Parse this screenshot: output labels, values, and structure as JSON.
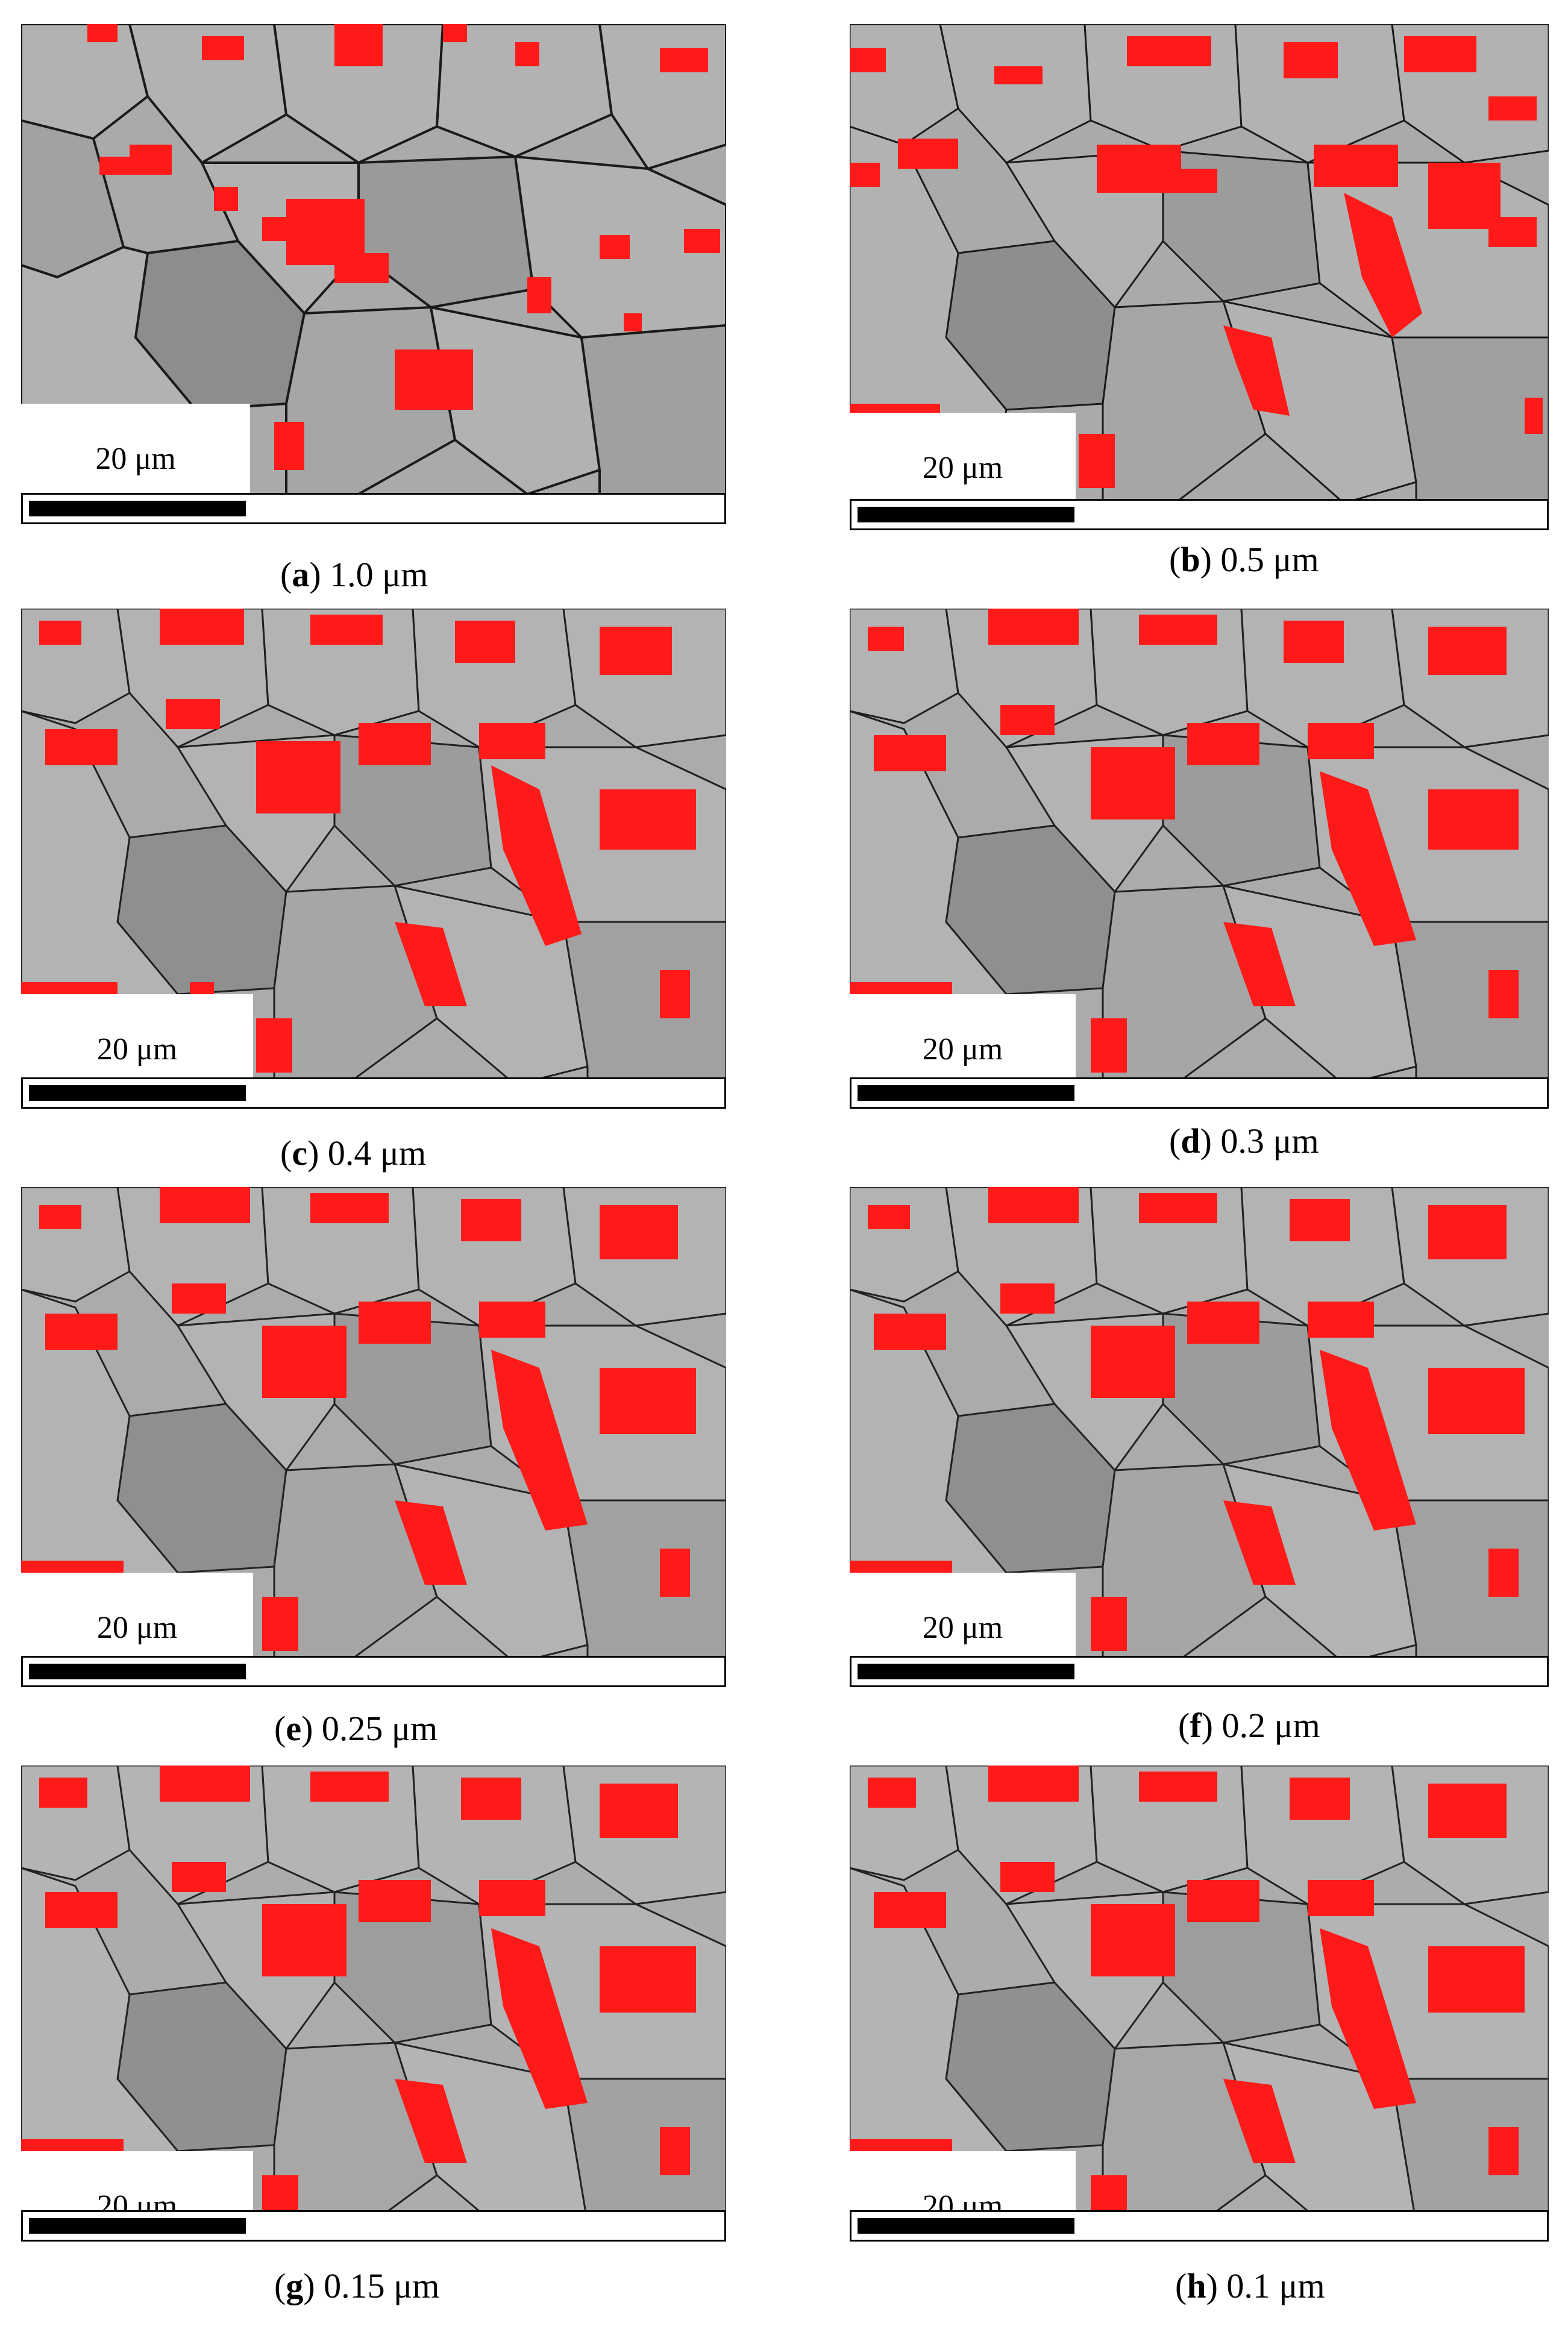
{
  "figure": {
    "scale_bar_label": "20 μm",
    "panels": [
      {
        "letter": "a",
        "step": "1.0 μm"
      },
      {
        "letter": "b",
        "step": "0.5 μm"
      },
      {
        "letter": "c",
        "step": "0.4 μm"
      },
      {
        "letter": "d",
        "step": "0.3 μm"
      },
      {
        "letter": "e",
        "step": "0.25 μm"
      },
      {
        "letter": "f",
        "step": "0.2 μm"
      },
      {
        "letter": "g",
        "step": "0.15 μm"
      },
      {
        "letter": "h",
        "step": "0.1 μm"
      }
    ]
  },
  "colors": {
    "phase_highlight": "#ff1a1a",
    "grain_light": "#b4b4b4",
    "grain_mid": "#a4a4a4",
    "grain_dark": "#8e8e8e",
    "grain_boundary": "#1a1a1a",
    "scale_bar": "#000000"
  }
}
